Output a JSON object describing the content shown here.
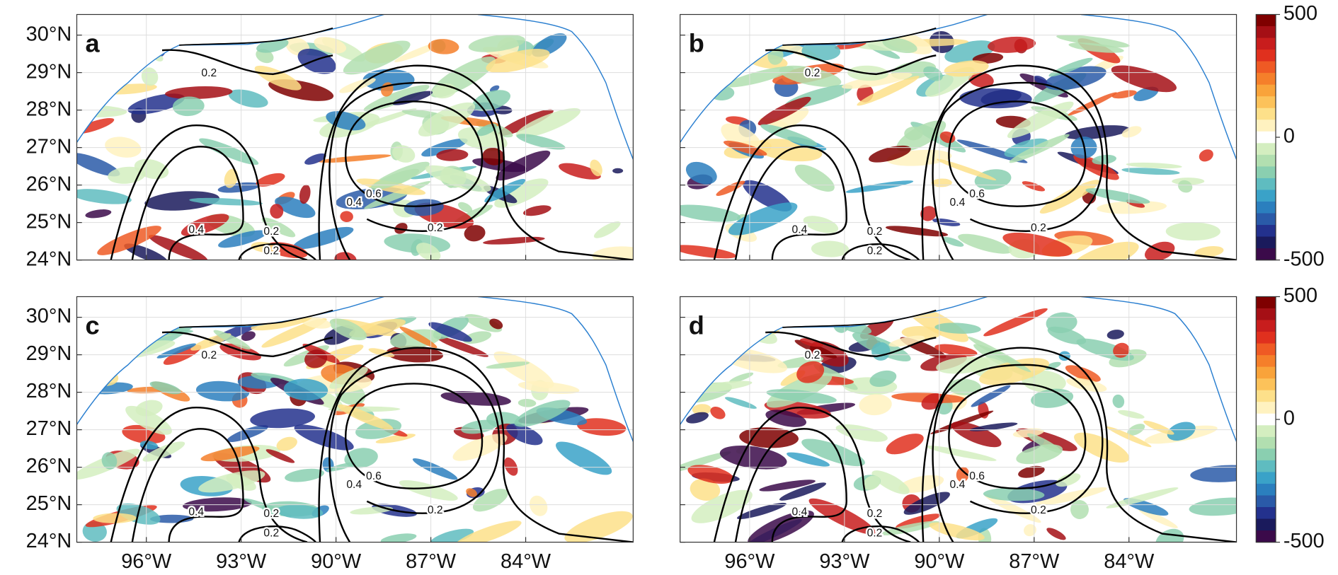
{
  "chart_data": {
    "type": "map",
    "panels": [
      {
        "label": "a",
        "contour_labels": [
          0.2,
          0.4,
          0.2,
          0.6,
          0.4,
          0.2,
          0.2
        ]
      },
      {
        "label": "b",
        "contour_labels": [
          0.2,
          0.4,
          0.2,
          0.6,
          0.4,
          0.2,
          0.2
        ]
      },
      {
        "label": "c",
        "contour_labels": [
          0.2,
          0.4,
          0.2,
          0.6,
          0.4,
          0.2,
          0.2
        ]
      },
      {
        "label": "d",
        "contour_labels": [
          0.2,
          0.4,
          0.2,
          0.6,
          0.4,
          0.2,
          0.2
        ]
      }
    ],
    "xlim": [
      -98.2,
      -80.6
    ],
    "ylim": [
      24,
      30.55
    ],
    "xticks": [
      {
        "value": -96,
        "label": "96°W"
      },
      {
        "value": -93,
        "label": "93°W"
      },
      {
        "value": -90,
        "label": "90°W"
      },
      {
        "value": -87,
        "label": "87°W"
      },
      {
        "value": -84,
        "label": "84°W"
      }
    ],
    "yticks": [
      {
        "value": 24,
        "label": "24°N"
      },
      {
        "value": 25,
        "label": "25°N"
      },
      {
        "value": 26,
        "label": "26°N"
      },
      {
        "value": 27,
        "label": "27°N"
      },
      {
        "value": 28,
        "label": "28°N"
      },
      {
        "value": 29,
        "label": "29°N"
      },
      {
        "value": 30,
        "label": "30°N"
      }
    ],
    "grid": true,
    "colorbar": {
      "lim": [
        -500,
        500
      ],
      "ticks": [
        500,
        0,
        -500
      ],
      "colors": [
        "#7f0000",
        "#a50f15",
        "#c81d1d",
        "#e0301e",
        "#ef5a24",
        "#f57f2a",
        "#f9a33a",
        "#fcc25a",
        "#fde08a",
        "#fff2c0",
        "#ffffff",
        "#d4eec0",
        "#b2dfb0",
        "#8acfb0",
        "#5fbcc0",
        "#3aa2c8",
        "#2b7fbe",
        "#2a5aa8",
        "#23318d",
        "#1a1a5c",
        "#3b0a4a"
      ]
    }
  }
}
